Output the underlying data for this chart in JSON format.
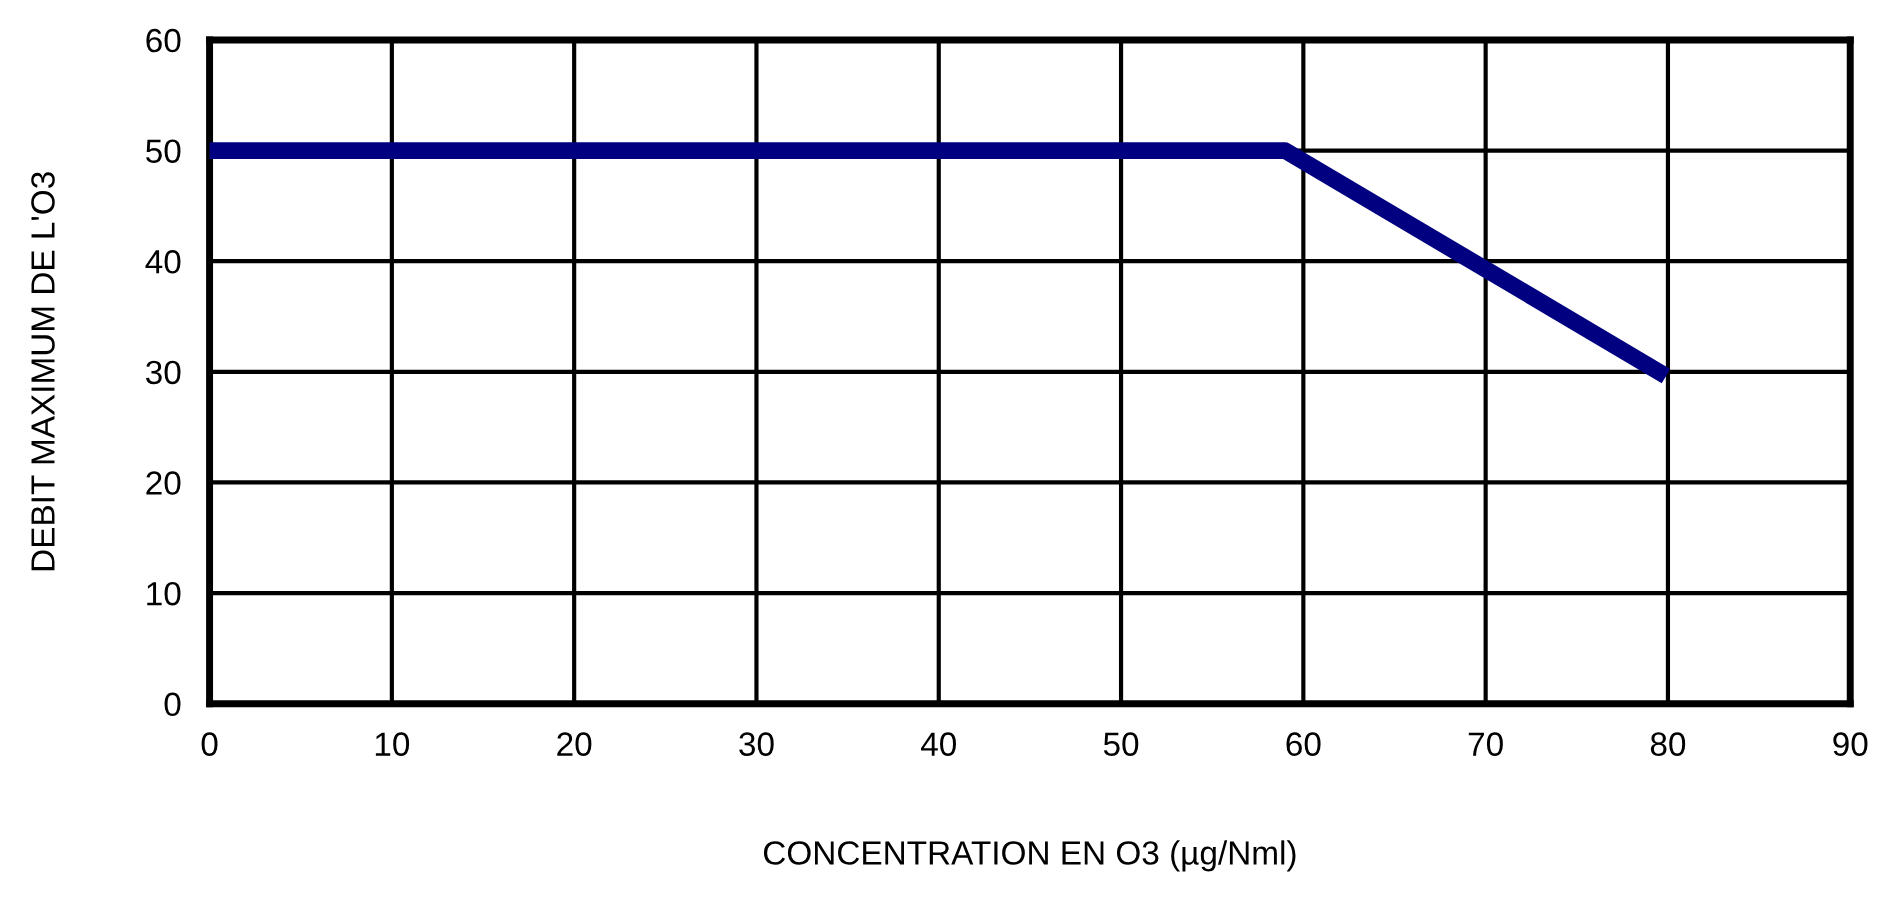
{
  "chart_data": {
    "type": "line",
    "xlabel": "CONCENTRATION EN O3 (µg/Nml)",
    "ylabel": "DEBIT MAXIMUM DE L'O3",
    "x": [
      0,
      59,
      79.5
    ],
    "series": [
      {
        "color": "#000080",
        "values": [
          50,
          50,
          30
        ]
      }
    ],
    "xlim": [
      0,
      90
    ],
    "xticks": [
      0,
      10,
      20,
      30,
      40,
      50,
      60,
      70,
      80,
      90
    ],
    "ylim": [
      0,
      60
    ],
    "yticks": [
      0,
      10,
      20,
      30,
      40,
      50,
      60
    ],
    "grid": true,
    "marker": "none",
    "line_style": "solid",
    "legend": false
  }
}
